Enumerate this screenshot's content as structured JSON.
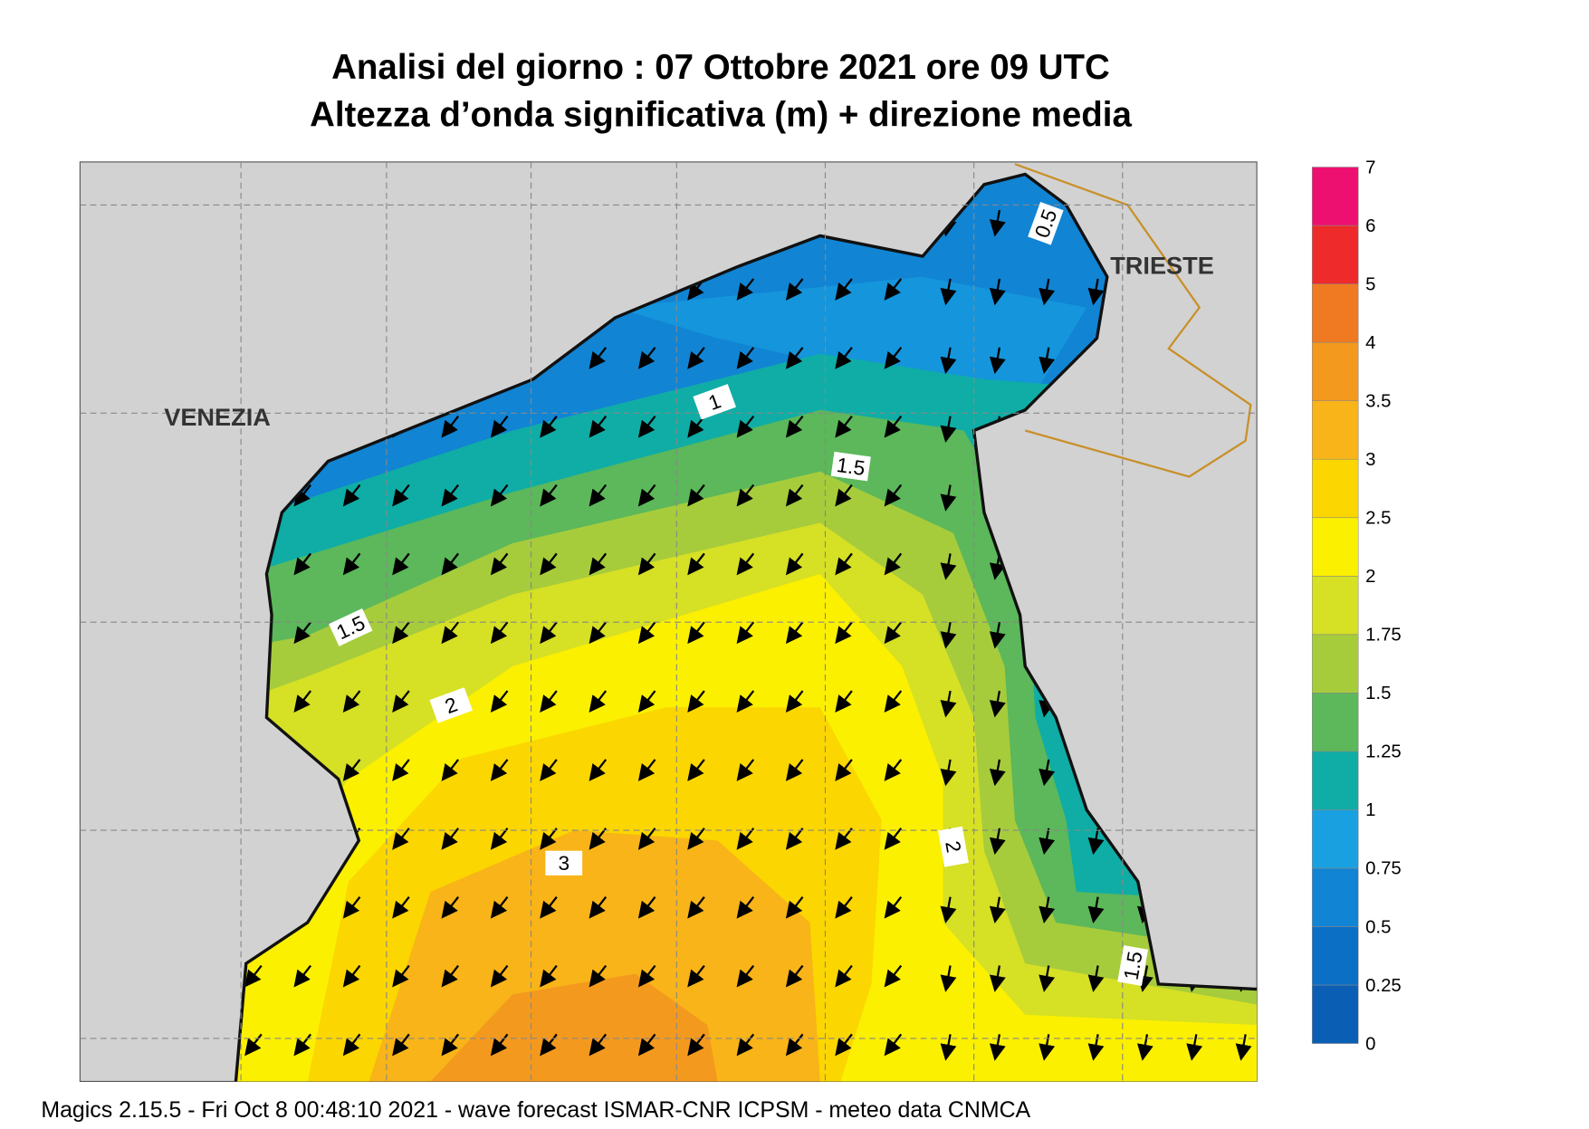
{
  "header": {
    "title_line1": "Analisi del giorno :  07  Ottobre  2021   ore 09 UTC",
    "title_line2": "Altezza d’onda significativa (m) + direzione media"
  },
  "map": {
    "cities": [
      "VENEZIA",
      "TRIESTE"
    ],
    "contour_labels": [
      "0.5",
      "1",
      "1.5",
      "1.5",
      "2",
      "3",
      "2",
      "1.5"
    ]
  },
  "colorbar": {
    "levels": [
      0,
      0.25,
      0.5,
      0.75,
      1,
      1.25,
      1.5,
      1.75,
      2,
      2.5,
      3,
      3.5,
      4,
      5,
      6,
      7
    ],
    "colors": [
      "#0a5fb4",
      "#0b6fc6",
      "#1184d4",
      "#19a0e0",
      "#0fada5",
      "#5cb85a",
      "#a6cc3c",
      "#d6e024",
      "#fbf000",
      "#fbd600",
      "#f8b418",
      "#f39a1e",
      "#f07a22",
      "#ee2a2a",
      "#ee1070"
    ]
  },
  "footer": "Magics 2.15.5 - Fri Oct  8 00:48:10 2021 - wave forecast  ISMAR-CNR  ICPSM - meteo data   CNMCA"
}
